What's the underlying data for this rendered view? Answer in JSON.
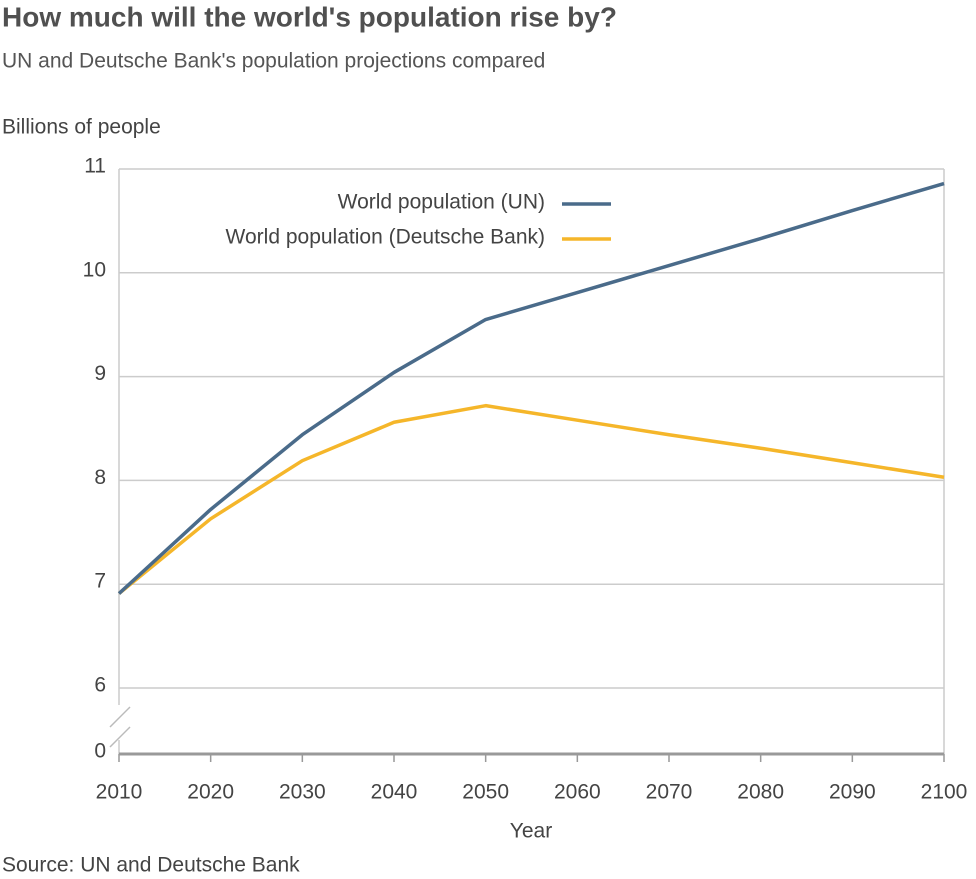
{
  "chart_data": {
    "type": "line",
    "title": "How much will the world's population rise by?",
    "subtitle": "UN and Deutsche Bank's population projections compared",
    "y_label": "Billions of people",
    "x_label": "Year",
    "source": "Source: UN and Deutsche Bank",
    "x": [
      2010,
      2020,
      2030,
      2040,
      2050,
      2060,
      2070,
      2080,
      2090,
      2100
    ],
    "series": [
      {
        "name": "World population (UN)",
        "color": "#4a6b8a",
        "values": [
          6.91,
          7.72,
          8.44,
          9.04,
          9.55,
          9.81,
          10.07,
          10.33,
          10.6,
          10.86
        ]
      },
      {
        "name": "World population (Deutsche Bank)",
        "color": "#f5b62a",
        "values": [
          6.91,
          7.63,
          8.19,
          8.56,
          8.72,
          8.58,
          8.44,
          8.31,
          8.17,
          8.03
        ]
      }
    ],
    "xlim": [
      2010,
      2100
    ],
    "xticks": [
      2010,
      2020,
      2030,
      2040,
      2050,
      2060,
      2070,
      2080,
      2090,
      2100
    ],
    "ylim": [
      0,
      11
    ],
    "axis_break": [
      0,
      6
    ],
    "yticks": [
      0,
      6,
      7,
      8,
      9,
      10,
      11
    ],
    "grid": true,
    "legend": "top"
  }
}
